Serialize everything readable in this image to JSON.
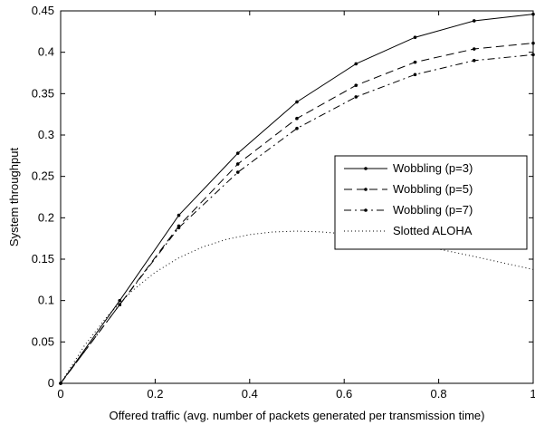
{
  "chart_data": {
    "type": "line",
    "title": "",
    "xlabel": "Offered traffic (avg. number of packets generated per transmission time)",
    "ylabel": "System throughput",
    "xlim": [
      0,
      1
    ],
    "ylim": [
      0,
      0.45
    ],
    "xticks": [
      "0",
      "0.2",
      "0.4",
      "0.6",
      "0.8",
      "1"
    ],
    "yticks": [
      "0",
      "0.05",
      "0.1",
      "0.15",
      "0.2",
      "0.25",
      "0.3",
      "0.35",
      "0.4",
      "0.45"
    ],
    "grid": false,
    "legend_position": "center-right",
    "series": [
      {
        "name": "Wobbling (p=3)",
        "style": "solid-dots",
        "x": [
          0,
          0.125,
          0.25,
          0.375,
          0.5,
          0.625,
          0.75,
          0.875,
          1
        ],
        "y": [
          0,
          0.1,
          0.203,
          0.278,
          0.34,
          0.386,
          0.418,
          0.438,
          0.446
        ]
      },
      {
        "name": "Wobbling (p=5)",
        "style": "dashed-dots",
        "x": [
          0,
          0.125,
          0.25,
          0.375,
          0.5,
          0.625,
          0.75,
          0.875,
          1
        ],
        "y": [
          0,
          0.095,
          0.19,
          0.265,
          0.32,
          0.36,
          0.388,
          0.404,
          0.411
        ]
      },
      {
        "name": "Wobbling (p=7)",
        "style": "dashdot-dots",
        "x": [
          0,
          0.125,
          0.25,
          0.375,
          0.5,
          0.625,
          0.75,
          0.875,
          1
        ],
        "y": [
          0,
          0.095,
          0.188,
          0.255,
          0.308,
          0.346,
          0.373,
          0.39,
          0.397
        ]
      },
      {
        "name": "Slotted ALOHA",
        "style": "dotted",
        "x": [
          0,
          0.05,
          0.1,
          0.15,
          0.2,
          0.25,
          0.3,
          0.35,
          0.4,
          0.45,
          0.5,
          0.55,
          0.6,
          0.65,
          0.7,
          0.75,
          0.8,
          0.85,
          0.9,
          0.95,
          1
        ],
        "y": [
          0,
          0.0452,
          0.0819,
          0.1111,
          0.1341,
          0.1516,
          0.1646,
          0.1738,
          0.1797,
          0.1829,
          0.1839,
          0.183,
          0.1807,
          0.1772,
          0.1729,
          0.1678,
          0.1622,
          0.1563,
          0.1501,
          0.1438,
          0.1375
        ]
      }
    ]
  }
}
